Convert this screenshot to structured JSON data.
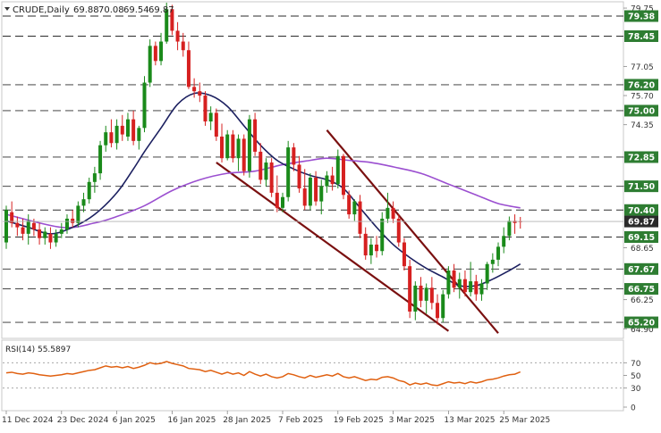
{
  "chart_data": {
    "type": "candlestick",
    "symbol": "CRUDE",
    "timeframe": "Daily",
    "ohlc_header": {
      "open": "69.88",
      "high": "70.08",
      "low": "69.54",
      "close": "69.87"
    },
    "last_price": "69.87",
    "colors": {
      "up": "#1a8a1a",
      "down": "#d62020",
      "last_price_tag": "#2a2a2a",
      "level_tag": "#2e7d32",
      "sma_fast": "#1c2060",
      "sma_slow": "#9b4fd0",
      "channel": "#7a1010",
      "rsi": "#e06010"
    },
    "price_axis": {
      "ylim": [
        64.5,
        80.0
      ],
      "ticks": [
        "79.75",
        "77.05",
        "75.70",
        "74.35",
        "72.85",
        "71.50",
        "68.65",
        "66.25",
        "64.90"
      ]
    },
    "horizontal_levels": [
      "79.38",
      "78.45",
      "76.20",
      "75.00",
      "72.85",
      "71.50",
      "70.40",
      "69.15",
      "67.67",
      "66.75",
      "65.20"
    ],
    "x_axis_labels": [
      "11 Dec 2024",
      "23 Dec 2024",
      "6 Jan 2025",
      "16 Jan 2025",
      "28 Jan 2025",
      "7 Feb 2025",
      "19 Feb 2025",
      "3 Mar 2025",
      "13 Mar 2025",
      "25 Mar 2025"
    ],
    "x_axis_label_index": [
      0,
      10,
      20,
      30,
      40,
      50,
      60,
      70,
      80,
      90
    ],
    "candles": [
      {
        "o": 68.9,
        "h": 70.6,
        "l": 68.6,
        "c": 70.4
      },
      {
        "o": 70.3,
        "h": 70.8,
        "l": 69.6,
        "c": 69.8
      },
      {
        "o": 69.8,
        "h": 70.1,
        "l": 69.2,
        "c": 69.6
      },
      {
        "o": 69.6,
        "h": 70.0,
        "l": 69.0,
        "c": 69.3
      },
      {
        "o": 69.3,
        "h": 70.2,
        "l": 68.8,
        "c": 69.9
      },
      {
        "o": 69.8,
        "h": 70.0,
        "l": 69.2,
        "c": 69.5
      },
      {
        "o": 69.5,
        "h": 69.8,
        "l": 68.8,
        "c": 69.1
      },
      {
        "o": 69.1,
        "h": 69.6,
        "l": 68.8,
        "c": 69.4
      },
      {
        "o": 69.3,
        "h": 69.6,
        "l": 68.6,
        "c": 68.9
      },
      {
        "o": 68.9,
        "h": 69.5,
        "l": 68.7,
        "c": 69.3
      },
      {
        "o": 69.3,
        "h": 69.8,
        "l": 69.1,
        "c": 69.5
      },
      {
        "o": 69.5,
        "h": 70.2,
        "l": 69.3,
        "c": 70.0
      },
      {
        "o": 70.0,
        "h": 70.4,
        "l": 69.6,
        "c": 69.8
      },
      {
        "o": 69.8,
        "h": 70.8,
        "l": 69.6,
        "c": 70.6
      },
      {
        "o": 70.6,
        "h": 71.2,
        "l": 70.3,
        "c": 70.9
      },
      {
        "o": 70.9,
        "h": 71.9,
        "l": 70.7,
        "c": 71.7
      },
      {
        "o": 71.7,
        "h": 72.4,
        "l": 71.2,
        "c": 72.1
      },
      {
        "o": 72.1,
        "h": 73.6,
        "l": 71.8,
        "c": 73.4
      },
      {
        "o": 73.4,
        "h": 74.3,
        "l": 73.1,
        "c": 74.0
      },
      {
        "o": 74.0,
        "h": 74.6,
        "l": 73.3,
        "c": 73.5
      },
      {
        "o": 73.5,
        "h": 74.6,
        "l": 73.2,
        "c": 74.3
      },
      {
        "o": 74.3,
        "h": 74.8,
        "l": 73.6,
        "c": 73.9
      },
      {
        "o": 73.8,
        "h": 74.9,
        "l": 73.6,
        "c": 74.6
      },
      {
        "o": 74.6,
        "h": 75.0,
        "l": 73.4,
        "c": 73.6
      },
      {
        "o": 73.6,
        "h": 74.3,
        "l": 73.2,
        "c": 74.2
      },
      {
        "o": 74.2,
        "h": 76.6,
        "l": 74.0,
        "c": 76.3
      },
      {
        "o": 76.3,
        "h": 78.3,
        "l": 76.1,
        "c": 78.0
      },
      {
        "o": 78.0,
        "h": 78.2,
        "l": 77.1,
        "c": 77.3
      },
      {
        "o": 77.3,
        "h": 78.6,
        "l": 77.1,
        "c": 78.2
      },
      {
        "o": 78.2,
        "h": 80.0,
        "l": 78.1,
        "c": 79.7
      },
      {
        "o": 79.7,
        "h": 79.9,
        "l": 78.5,
        "c": 78.7
      },
      {
        "o": 78.7,
        "h": 79.1,
        "l": 77.8,
        "c": 78.2
      },
      {
        "o": 78.2,
        "h": 78.6,
        "l": 77.5,
        "c": 77.8
      },
      {
        "o": 77.8,
        "h": 78.2,
        "l": 76.0,
        "c": 76.1
      },
      {
        "o": 76.1,
        "h": 76.5,
        "l": 75.6,
        "c": 75.9
      },
      {
        "o": 75.9,
        "h": 76.3,
        "l": 75.4,
        "c": 75.7
      },
      {
        "o": 75.7,
        "h": 75.9,
        "l": 74.3,
        "c": 74.5
      },
      {
        "o": 74.5,
        "h": 75.2,
        "l": 74.1,
        "c": 74.9
      },
      {
        "o": 74.9,
        "h": 75.1,
        "l": 73.6,
        "c": 73.8
      },
      {
        "o": 73.8,
        "h": 74.4,
        "l": 72.6,
        "c": 72.8
      },
      {
        "o": 72.8,
        "h": 74.1,
        "l": 72.7,
        "c": 73.9
      },
      {
        "o": 73.9,
        "h": 74.1,
        "l": 72.6,
        "c": 72.8
      },
      {
        "o": 72.8,
        "h": 73.9,
        "l": 72.2,
        "c": 73.7
      },
      {
        "o": 73.7,
        "h": 73.9,
        "l": 72.0,
        "c": 72.2
      },
      {
        "o": 72.2,
        "h": 74.8,
        "l": 71.9,
        "c": 74.6
      },
      {
        "o": 74.6,
        "h": 74.9,
        "l": 72.9,
        "c": 73.1
      },
      {
        "o": 73.1,
        "h": 73.5,
        "l": 71.6,
        "c": 71.8
      },
      {
        "o": 71.8,
        "h": 72.8,
        "l": 71.5,
        "c": 72.6
      },
      {
        "o": 72.6,
        "h": 72.8,
        "l": 71.0,
        "c": 71.2
      },
      {
        "o": 71.2,
        "h": 72.0,
        "l": 70.3,
        "c": 70.5
      },
      {
        "o": 70.5,
        "h": 71.2,
        "l": 70.3,
        "c": 71.0
      },
      {
        "o": 71.0,
        "h": 73.6,
        "l": 70.8,
        "c": 73.3
      },
      {
        "o": 73.3,
        "h": 73.5,
        "l": 72.2,
        "c": 72.5
      },
      {
        "o": 72.5,
        "h": 72.9,
        "l": 71.2,
        "c": 71.4
      },
      {
        "o": 71.4,
        "h": 72.3,
        "l": 70.4,
        "c": 70.6
      },
      {
        "o": 70.6,
        "h": 72.1,
        "l": 70.4,
        "c": 71.9
      },
      {
        "o": 71.9,
        "h": 72.2,
        "l": 70.6,
        "c": 70.8
      },
      {
        "o": 70.8,
        "h": 71.8,
        "l": 70.2,
        "c": 71.5
      },
      {
        "o": 71.5,
        "h": 72.2,
        "l": 71.2,
        "c": 72.0
      },
      {
        "o": 72.0,
        "h": 72.4,
        "l": 71.3,
        "c": 71.6
      },
      {
        "o": 71.6,
        "h": 73.2,
        "l": 71.4,
        "c": 72.9
      },
      {
        "o": 72.9,
        "h": 73.0,
        "l": 70.9,
        "c": 71.1
      },
      {
        "o": 71.1,
        "h": 71.3,
        "l": 70.0,
        "c": 70.2
      },
      {
        "o": 70.2,
        "h": 70.9,
        "l": 69.9,
        "c": 70.8
      },
      {
        "o": 70.8,
        "h": 71.1,
        "l": 69.1,
        "c": 69.3
      },
      {
        "o": 69.3,
        "h": 69.6,
        "l": 68.1,
        "c": 68.3
      },
      {
        "o": 68.3,
        "h": 69.1,
        "l": 67.9,
        "c": 68.8
      },
      {
        "o": 68.8,
        "h": 69.2,
        "l": 68.2,
        "c": 68.5
      },
      {
        "o": 68.5,
        "h": 70.3,
        "l": 68.3,
        "c": 70.0
      },
      {
        "o": 70.0,
        "h": 71.2,
        "l": 69.8,
        "c": 70.5
      },
      {
        "o": 70.5,
        "h": 70.8,
        "l": 69.8,
        "c": 70.0
      },
      {
        "o": 70.0,
        "h": 70.2,
        "l": 68.7,
        "c": 68.9
      },
      {
        "o": 68.9,
        "h": 69.1,
        "l": 67.6,
        "c": 67.8
      },
      {
        "o": 67.8,
        "h": 68.1,
        "l": 65.4,
        "c": 65.7
      },
      {
        "o": 65.7,
        "h": 67.1,
        "l": 65.3,
        "c": 66.9
      },
      {
        "o": 66.9,
        "h": 67.3,
        "l": 65.9,
        "c": 66.2
      },
      {
        "o": 66.2,
        "h": 67.0,
        "l": 65.6,
        "c": 66.8
      },
      {
        "o": 66.8,
        "h": 67.3,
        "l": 65.8,
        "c": 66.1
      },
      {
        "o": 66.1,
        "h": 66.5,
        "l": 65.1,
        "c": 65.4
      },
      {
        "o": 65.4,
        "h": 66.7,
        "l": 65.2,
        "c": 66.5
      },
      {
        "o": 66.5,
        "h": 67.8,
        "l": 66.3,
        "c": 67.6
      },
      {
        "o": 67.6,
        "h": 67.9,
        "l": 66.6,
        "c": 66.8
      },
      {
        "o": 66.8,
        "h": 67.5,
        "l": 66.3,
        "c": 67.2
      },
      {
        "o": 67.2,
        "h": 67.6,
        "l": 66.4,
        "c": 66.6
      },
      {
        "o": 66.6,
        "h": 68.0,
        "l": 66.4,
        "c": 67.1
      },
      {
        "o": 67.1,
        "h": 67.4,
        "l": 66.2,
        "c": 66.5
      },
      {
        "o": 66.5,
        "h": 67.2,
        "l": 66.2,
        "c": 67.0
      },
      {
        "o": 67.0,
        "h": 68.0,
        "l": 66.7,
        "c": 67.9
      },
      {
        "o": 67.9,
        "h": 68.4,
        "l": 67.5,
        "c": 68.1
      },
      {
        "o": 68.1,
        "h": 68.9,
        "l": 67.8,
        "c": 68.7
      },
      {
        "o": 68.7,
        "h": 69.6,
        "l": 68.4,
        "c": 69.2
      },
      {
        "o": 69.2,
        "h": 70.1,
        "l": 69.0,
        "c": 69.9
      },
      {
        "o": 69.9,
        "h": 70.2,
        "l": 69.3,
        "c": 69.8
      },
      {
        "o": 69.88,
        "h": 70.08,
        "l": 69.54,
        "c": 69.87
      }
    ],
    "sma_fast": [
      [
        0,
        69.9
      ],
      [
        4,
        69.6
      ],
      [
        8,
        69.3
      ],
      [
        12,
        69.6
      ],
      [
        16,
        70.2
      ],
      [
        20,
        71.2
      ],
      [
        23,
        72.3
      ],
      [
        25,
        73.1
      ],
      [
        28,
        74.2
      ],
      [
        31,
        75.3
      ],
      [
        34,
        75.8
      ],
      [
        37,
        75.7
      ],
      [
        40,
        75.2
      ],
      [
        43,
        74.3
      ],
      [
        46,
        73.4
      ],
      [
        49,
        72.7
      ],
      [
        52,
        72.3
      ],
      [
        55,
        72.0
      ],
      [
        58,
        71.8
      ],
      [
        61,
        71.4
      ],
      [
        64,
        70.5
      ],
      [
        67,
        69.6
      ],
      [
        70,
        68.8
      ],
      [
        73,
        68.2
      ],
      [
        76,
        67.7
      ],
      [
        79,
        67.3
      ],
      [
        82,
        66.9
      ],
      [
        85,
        66.9
      ],
      [
        88,
        67.2
      ],
      [
        91,
        67.6
      ],
      [
        93,
        67.9
      ]
    ],
    "sma_slow": [
      [
        0,
        70.2
      ],
      [
        10,
        69.6
      ],
      [
        16,
        69.8
      ],
      [
        20,
        70.1
      ],
      [
        25,
        70.6
      ],
      [
        30,
        71.3
      ],
      [
        35,
        71.8
      ],
      [
        40,
        72.1
      ],
      [
        45,
        72.2
      ],
      [
        50,
        72.5
      ],
      [
        55,
        72.7
      ],
      [
        58,
        72.8
      ],
      [
        62,
        72.7
      ],
      [
        66,
        72.6
      ],
      [
        70,
        72.4
      ],
      [
        75,
        72.1
      ],
      [
        80,
        71.6
      ],
      [
        85,
        71.1
      ],
      [
        89,
        70.7
      ],
      [
        93,
        70.5
      ]
    ],
    "channel_lines": [
      {
        "from": [
          38,
          72.6
        ],
        "to": [
          80,
          64.8
        ]
      },
      {
        "from": [
          58,
          74.1
        ],
        "to": [
          89,
          64.7
        ]
      }
    ],
    "rsi": {
      "label": "RSI(14)",
      "value": "55.5897",
      "ylim": [
        0,
        100
      ],
      "ticks": [
        "70",
        "50",
        "30",
        "0"
      ],
      "levels": [
        70,
        30
      ],
      "values": [
        54,
        55,
        53,
        52,
        54,
        53,
        51,
        50,
        49,
        50,
        51,
        53,
        52,
        54,
        56,
        58,
        59,
        62,
        65,
        63,
        64,
        62,
        64,
        61,
        63,
        66,
        70,
        68,
        69,
        72,
        69,
        67,
        65,
        61,
        60,
        59,
        56,
        58,
        55,
        52,
        55,
        52,
        54,
        50,
        56,
        52,
        49,
        52,
        48,
        46,
        48,
        53,
        51,
        48,
        46,
        50,
        47,
        49,
        51,
        49,
        53,
        48,
        46,
        48,
        45,
        42,
        44,
        43,
        47,
        48,
        46,
        42,
        40,
        35,
        38,
        36,
        38,
        35,
        34,
        37,
        40,
        38,
        39,
        37,
        40,
        38,
        40,
        43,
        44,
        46,
        49,
        51,
        52,
        55.6
      ]
    }
  }
}
